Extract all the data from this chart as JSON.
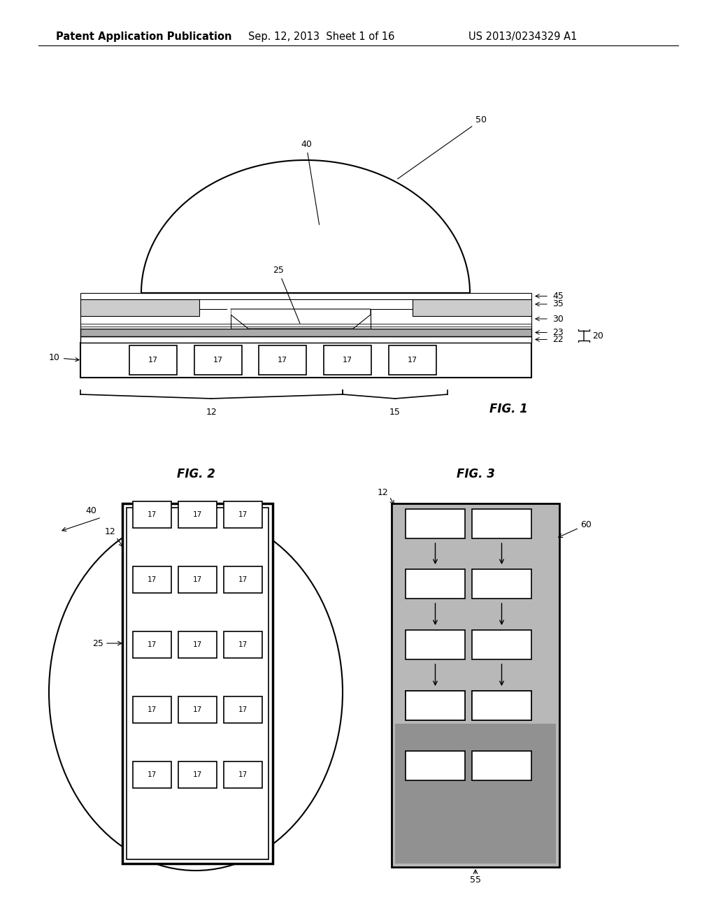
{
  "bg_color": "#ffffff",
  "header": {
    "left_text": "Patent Application Publication",
    "mid_text": "Sep. 12, 2013  Sheet 1 of 16",
    "right_text": "US 2013/0234329 A1",
    "fontsize": 10.5
  },
  "fig1_label": "FIG. 1",
  "fig2_label": "FIG. 2",
  "fig3_label": "FIG. 3"
}
